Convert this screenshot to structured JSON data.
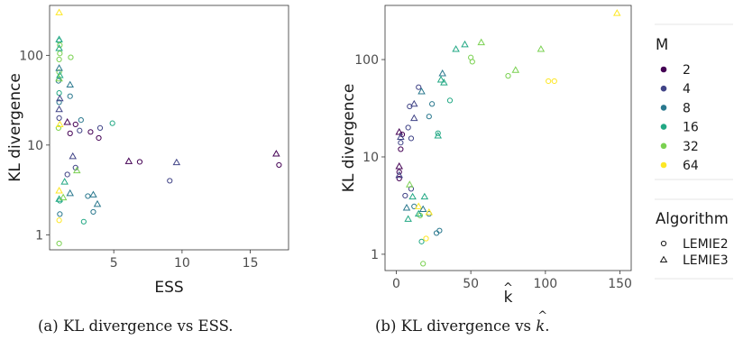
{
  "figure": {
    "caption_a": "(a) KL divergence vs ESS.",
    "caption_b_prefix": "(b) KL divergence vs ",
    "caption_b_symbol": "k",
    "caption_b_suffix": "."
  },
  "legend": {
    "m_title": "M",
    "m_levels": [
      "2",
      "4",
      "8",
      "16",
      "32",
      "64"
    ],
    "m_colors": [
      "#440154",
      "#414487",
      "#2a788e",
      "#22a884",
      "#7ad151",
      "#fde725"
    ],
    "algorithm_title": "Algorithm",
    "algorithm_levels": [
      "LEMIE2",
      "LEMIE3"
    ],
    "algorithm_shapes": [
      "circle-icon",
      "triangle-icon"
    ]
  },
  "chart_data": [
    {
      "type": "scatter",
      "xlabel": "ESS",
      "ylabel": "KL divergence",
      "xlim": [
        0.3,
        17.8
      ],
      "ylim": [
        0.68,
        360
      ],
      "ylog": true,
      "xticks": [
        5,
        10,
        15
      ],
      "xticklabels": [
        "5",
        "10",
        "15"
      ],
      "yticks": [
        1,
        10,
        100
      ],
      "yticklabels": [
        "1",
        "10",
        "100"
      ],
      "grid": false,
      "series": [
        {
          "name": "LEMIE2",
          "marker": "circle",
          "points": [
            {
              "x": 1.0,
              "y": 0.8,
              "m": 4
            },
            {
              "x": 1.0,
              "y": 1.45,
              "m": 5
            },
            {
              "x": 1.05,
              "y": 1.7,
              "m": 2
            },
            {
              "x": 1.05,
              "y": 2.4,
              "m": 3
            },
            {
              "x": 0.95,
              "y": 15.5,
              "m": 4
            },
            {
              "x": 1.0,
              "y": 20,
              "m": 1
            },
            {
              "x": 1.0,
              "y": 30,
              "m": 2
            },
            {
              "x": 1.0,
              "y": 38,
              "m": 3
            },
            {
              "x": 0.95,
              "y": 52,
              "m": 2
            },
            {
              "x": 1.0,
              "y": 65,
              "m": 4
            },
            {
              "x": 1.0,
              "y": 90,
              "m": 4
            },
            {
              "x": 1.05,
              "y": 105,
              "m": 4
            },
            {
              "x": 1.0,
              "y": 145,
              "m": 3
            },
            {
              "x": 1.05,
              "y": 130,
              "m": 4
            },
            {
              "x": 1.6,
              "y": 4.7,
              "m": 1
            },
            {
              "x": 1.8,
              "y": 13.5,
              "m": 0
            },
            {
              "x": 1.8,
              "y": 35,
              "m": 2
            },
            {
              "x": 1.85,
              "y": 95,
              "m": 4
            },
            {
              "x": 2.2,
              "y": 5.6,
              "m": 1
            },
            {
              "x": 2.2,
              "y": 17,
              "m": 0
            },
            {
              "x": 2.5,
              "y": 14.5,
              "m": 1
            },
            {
              "x": 2.6,
              "y": 19,
              "m": 2
            },
            {
              "x": 2.8,
              "y": 1.4,
              "m": 3
            },
            {
              "x": 3.1,
              "y": 2.7,
              "m": 2
            },
            {
              "x": 3.3,
              "y": 14,
              "m": 0
            },
            {
              "x": 3.5,
              "y": 1.8,
              "m": 2
            },
            {
              "x": 3.9,
              "y": 12,
              "m": 0
            },
            {
              "x": 4.0,
              "y": 15.5,
              "m": 1
            },
            {
              "x": 4.9,
              "y": 17.5,
              "m": 3
            },
            {
              "x": 6.9,
              "y": 6.5,
              "m": 0
            },
            {
              "x": 9.1,
              "y": 4.0,
              "m": 1
            },
            {
              "x": 17.1,
              "y": 6.0,
              "m": 0
            }
          ]
        },
        {
          "name": "LEMIE3",
          "marker": "triangle",
          "points": [
            {
              "x": 1.0,
              "y": 3.1,
              "m": 5
            },
            {
              "x": 1.0,
              "y": 2.5,
              "m": 3
            },
            {
              "x": 1.05,
              "y": 17,
              "m": 5
            },
            {
              "x": 1.0,
              "y": 25,
              "m": 1
            },
            {
              "x": 1.05,
              "y": 33,
              "m": 1
            },
            {
              "x": 1.0,
              "y": 55,
              "m": 4
            },
            {
              "x": 1.05,
              "y": 60,
              "m": 3
            },
            {
              "x": 1.0,
              "y": 72,
              "m": 2
            },
            {
              "x": 1.0,
              "y": 120,
              "m": 3
            },
            {
              "x": 1.0,
              "y": 150,
              "m": 3
            },
            {
              "x": 1.0,
              "y": 300,
              "m": 5
            },
            {
              "x": 1.3,
              "y": 2.6,
              "m": 4
            },
            {
              "x": 1.4,
              "y": 3.9,
              "m": 3
            },
            {
              "x": 1.6,
              "y": 18,
              "m": 0
            },
            {
              "x": 1.8,
              "y": 2.9,
              "m": 2
            },
            {
              "x": 1.8,
              "y": 47,
              "m": 2
            },
            {
              "x": 2.0,
              "y": 7.5,
              "m": 1
            },
            {
              "x": 2.3,
              "y": 5.2,
              "m": 4
            },
            {
              "x": 3.5,
              "y": 2.8,
              "m": 2
            },
            {
              "x": 3.8,
              "y": 2.2,
              "m": 2
            },
            {
              "x": 6.1,
              "y": 6.6,
              "m": 0
            },
            {
              "x": 9.6,
              "y": 6.4,
              "m": 1
            },
            {
              "x": 16.9,
              "y": 8.0,
              "m": 0
            }
          ]
        }
      ]
    },
    {
      "type": "scatter",
      "xlabel": "k",
      "ylabel": "KL divergence",
      "xlim": [
        -7.5,
        157.5
      ],
      "ylim": [
        0.68,
        360
      ],
      "ylog": true,
      "xticks": [
        0,
        50,
        100,
        150
      ],
      "xticklabels": [
        "0",
        "50",
        "100",
        "150"
      ],
      "yticks": [
        1,
        10,
        100
      ],
      "yticklabels": [
        "1",
        "10",
        "100"
      ],
      "grid": false,
      "series": [
        {
          "name": "LEMIE2",
          "marker": "circle",
          "points": [
            {
              "x": 2,
              "y": 6.0,
              "m": 0
            },
            {
              "x": 2,
              "y": 7.0,
              "m": 0
            },
            {
              "x": 3,
              "y": 12,
              "m": 0
            },
            {
              "x": 3,
              "y": 14,
              "m": 1
            },
            {
              "x": 4,
              "y": 17,
              "m": 0
            },
            {
              "x": 8,
              "y": 20,
              "m": 1
            },
            {
              "x": 6,
              "y": 4.0,
              "m": 1
            },
            {
              "x": 10,
              "y": 4.7,
              "m": 1
            },
            {
              "x": 10,
              "y": 15.5,
              "m": 1
            },
            {
              "x": 9,
              "y": 33,
              "m": 1
            },
            {
              "x": 12,
              "y": 3.1,
              "m": 2
            },
            {
              "x": 15,
              "y": 52,
              "m": 1
            },
            {
              "x": 16,
              "y": 2.5,
              "m": 4
            },
            {
              "x": 17,
              "y": 1.35,
              "m": 3
            },
            {
              "x": 18,
              "y": 0.8,
              "m": 4
            },
            {
              "x": 20,
              "y": 1.45,
              "m": 5
            },
            {
              "x": 22,
              "y": 2.6,
              "m": 2
            },
            {
              "x": 22,
              "y": 26,
              "m": 2
            },
            {
              "x": 24,
              "y": 35,
              "m": 2
            },
            {
              "x": 27,
              "y": 1.65,
              "m": 2
            },
            {
              "x": 28,
              "y": 17.5,
              "m": 3
            },
            {
              "x": 29,
              "y": 1.75,
              "m": 2
            },
            {
              "x": 36,
              "y": 38,
              "m": 3
            },
            {
              "x": 50,
              "y": 105,
              "m": 4
            },
            {
              "x": 51,
              "y": 95,
              "m": 4
            },
            {
              "x": 75,
              "y": 68,
              "m": 4
            },
            {
              "x": 102,
              "y": 60,
              "m": 5
            },
            {
              "x": 106,
              "y": 60,
              "m": 5
            }
          ]
        },
        {
          "name": "LEMIE3",
          "marker": "triangle",
          "points": [
            {
              "x": 2,
              "y": 8.0,
              "m": 0
            },
            {
              "x": 2,
              "y": 6.5,
              "m": 1
            },
            {
              "x": 2,
              "y": 18,
              "m": 0
            },
            {
              "x": 3,
              "y": 16,
              "m": 1
            },
            {
              "x": 7,
              "y": 3.0,
              "m": 2
            },
            {
              "x": 8,
              "y": 2.3,
              "m": 3
            },
            {
              "x": 9,
              "y": 5.2,
              "m": 4
            },
            {
              "x": 11,
              "y": 3.9,
              "m": 3
            },
            {
              "x": 12,
              "y": 25,
              "m": 1
            },
            {
              "x": 12,
              "y": 35,
              "m": 1
            },
            {
              "x": 15,
              "y": 3.1,
              "m": 5
            },
            {
              "x": 15,
              "y": 2.6,
              "m": 3
            },
            {
              "x": 17,
              "y": 47,
              "m": 2
            },
            {
              "x": 18,
              "y": 2.9,
              "m": 2
            },
            {
              "x": 19,
              "y": 3.9,
              "m": 3
            },
            {
              "x": 22,
              "y": 2.7,
              "m": 5
            },
            {
              "x": 28,
              "y": 16.5,
              "m": 3
            },
            {
              "x": 30,
              "y": 62,
              "m": 3
            },
            {
              "x": 31,
              "y": 72,
              "m": 2
            },
            {
              "x": 32,
              "y": 58,
              "m": 3
            },
            {
              "x": 40,
              "y": 128,
              "m": 3
            },
            {
              "x": 46,
              "y": 143,
              "m": 3
            },
            {
              "x": 57,
              "y": 150,
              "m": 4
            },
            {
              "x": 80,
              "y": 78,
              "m": 4
            },
            {
              "x": 97,
              "y": 128,
              "m": 4
            },
            {
              "x": 148,
              "y": 300,
              "m": 5
            }
          ]
        }
      ]
    }
  ]
}
